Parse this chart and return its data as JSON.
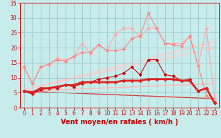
{
  "xlabel": "Vent moyen/en rafales ( km/h )",
  "xlim": [
    -0.5,
    23.5
  ],
  "ylim": [
    0,
    35
  ],
  "xticks": [
    0,
    1,
    2,
    3,
    4,
    5,
    6,
    7,
    8,
    9,
    10,
    11,
    12,
    13,
    14,
    15,
    16,
    17,
    18,
    19,
    20,
    21,
    22,
    23
  ],
  "yticks": [
    0,
    5,
    10,
    15,
    20,
    25,
    30,
    35
  ],
  "background_color": "#c8ecec",
  "grid_color": "#a0cccc",
  "series": [
    {
      "x": [
        0,
        1,
        2,
        3,
        4,
        5,
        6,
        7,
        8,
        9,
        10,
        11,
        12,
        13,
        14,
        15,
        16,
        17,
        18,
        19,
        20,
        21,
        22,
        23
      ],
      "y": [
        5.5,
        4.5,
        6.0,
        6.5,
        6.5,
        7.5,
        7.0,
        8.0,
        8.5,
        9.5,
        10.0,
        10.5,
        11.5,
        13.5,
        11.0,
        16.0,
        16.0,
        11.0,
        10.5,
        9.0,
        9.5,
        5.5,
        6.5,
        1.5
      ],
      "color": "#cc0000",
      "linewidth": 0.8,
      "marker": "D",
      "markersize": 1.8,
      "alpha": 1.0,
      "zorder": 4
    },
    {
      "x": [
        0,
        1,
        2,
        3,
        4,
        5,
        6,
        7,
        8,
        9,
        10,
        11,
        12,
        13,
        14,
        15,
        16,
        17,
        18,
        19,
        20,
        21,
        22,
        23
      ],
      "y": [
        5.5,
        5.0,
        6.5,
        6.5,
        7.0,
        7.5,
        7.5,
        8.5,
        8.5,
        8.5,
        8.5,
        8.5,
        9.0,
        9.0,
        9.0,
        9.5,
        9.5,
        9.5,
        9.5,
        9.0,
        9.0,
        5.5,
        6.5,
        1.5
      ],
      "color": "#dd2222",
      "linewidth": 2.0,
      "marker": "D",
      "markersize": 2.0,
      "alpha": 1.0,
      "zorder": 5
    },
    {
      "x": [
        0,
        1,
        2,
        3,
        4,
        5,
        6,
        7,
        8,
        9,
        10,
        11,
        12,
        13,
        14,
        15,
        16,
        17,
        18,
        19,
        20,
        21,
        22,
        23
      ],
      "y": [
        13.5,
        8.0,
        13.5,
        14.5,
        16.5,
        16.0,
        17.0,
        21.5,
        18.0,
        21.0,
        19.0,
        24.5,
        26.5,
        26.5,
        23.5,
        26.5,
        26.5,
        21.5,
        21.5,
        21.5,
        23.5,
        14.0,
        26.5,
        3.0
      ],
      "color": "#ffaaaa",
      "linewidth": 0.9,
      "marker": "D",
      "markersize": 1.8,
      "alpha": 1.0,
      "zorder": 2
    },
    {
      "x": [
        0,
        1,
        2,
        3,
        4,
        5,
        6,
        7,
        8,
        9,
        10,
        11,
        12,
        13,
        14,
        15,
        16,
        17,
        18,
        19,
        20,
        21,
        22,
        23
      ],
      "y": [
        13.5,
        8.0,
        13.5,
        14.5,
        16.0,
        15.5,
        17.0,
        18.5,
        18.5,
        21.0,
        19.0,
        19.0,
        19.5,
        23.0,
        24.0,
        31.5,
        26.5,
        21.5,
        21.0,
        20.5,
        24.0,
        14.0,
        4.0,
        2.0
      ],
      "color": "#ff8888",
      "linewidth": 0.9,
      "marker": "D",
      "markersize": 1.8,
      "alpha": 1.0,
      "zorder": 2
    },
    {
      "x": [
        0,
        23
      ],
      "y": [
        6.0,
        22.0
      ],
      "color": "#ffcccc",
      "linewidth": 1.2,
      "marker": null,
      "markersize": 0,
      "alpha": 1.0,
      "zorder": 1
    },
    {
      "x": [
        0,
        23
      ],
      "y": [
        6.0,
        20.0
      ],
      "color": "#ffcccc",
      "linewidth": 1.2,
      "marker": null,
      "markersize": 0,
      "alpha": 1.0,
      "zorder": 1
    },
    {
      "x": [
        0,
        23
      ],
      "y": [
        5.5,
        8.0
      ],
      "color": "#ffbbbb",
      "linewidth": 1.2,
      "marker": null,
      "markersize": 0,
      "alpha": 1.0,
      "zorder": 1
    },
    {
      "x": [
        0,
        23
      ],
      "y": [
        5.5,
        3.0
      ],
      "color": "#dd3333",
      "linewidth": 1.0,
      "marker": null,
      "markersize": 0,
      "alpha": 1.0,
      "zorder": 1
    }
  ],
  "tick_color": "#cc0000",
  "tick_fontsize": 5.5,
  "label_fontsize": 7.0
}
